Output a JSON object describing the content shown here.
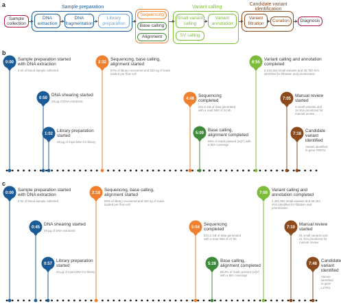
{
  "panel_a": {
    "letter": "a",
    "groups": {
      "sample_prep": "Sample preparation",
      "variant_calling": "Variant calling",
      "candidate": "Candidate variant identification"
    },
    "boxes": {
      "sample_collection": "Sample collection",
      "dna_extraction": "DNA extraction",
      "dna_fragmentation": "DNA fragmentation",
      "library_preparation": "Library preparation",
      "sequencing": "Sequencing",
      "base_calling": "Base calling",
      "alignment": "Alignment",
      "small_variant_calling": "Small variant calling",
      "variant_annotation": "Variant annotation",
      "sv_calling": "SV calling",
      "variant_filtration": "Variant filtration",
      "curation": "Curation",
      "diagnosis": "Diagnosis"
    },
    "colors": {
      "red": "#b0173d",
      "blue": "#1a5a96",
      "lightblue": "#6aa6d8",
      "orange": "#f07f2e",
      "darkgreen": "#3e8a3a",
      "green": "#7dbb3b",
      "brown": "#8b4a1c"
    }
  },
  "panel_b": {
    "letter": "b",
    "events": [
      {
        "time": "0:00",
        "title": "Sample preparation started with DNA extraction",
        "desc": "2 ml of blood sample collected",
        "color": "#1a5a96"
      },
      {
        "time": "0:50",
        "title": "DNA shearing started",
        "desc": "29 µg of DNA extracted",
        "color": "#1a5a96"
      },
      {
        "time": "1:02",
        "title": "Library preparation started",
        "desc": "28 µg of input DNA for library",
        "color": "#1a5a96"
      },
      {
        "time": "2:32",
        "title": "Sequencing, base calling, alignment started",
        "desc": "57% of library recovered and 333 ng of mass loaded per flow cell",
        "color": "#f07f2e"
      },
      {
        "time": "4:48",
        "title": "Sequencing completed",
        "desc": "201.5 GB of data generated with a read N50 of 24 kb",
        "color": "#f07f2e"
      },
      {
        "time": "5:09",
        "title": "Base calling, alignment completed",
        "desc": "89% of reads passed (≥Q7) with a 85× coverage",
        "color": "#3e8a3a"
      },
      {
        "time": "6:55",
        "title": "Variant calling and annotation completed",
        "desc": "4,318,464 small variants and 35,780 SVs identified for filtration and prioritization",
        "color": "#7dbb3b"
      },
      {
        "time": "7:05",
        "title": "Manual review started",
        "desc": "3 small variants and 16 SVs prioritized for manual review",
        "color": "#8b4a1c"
      },
      {
        "time": "7:18",
        "title": "Candidate variant identified",
        "desc": "Variant identified in gene TNNT2",
        "color": "#8b4a1c"
      }
    ]
  },
  "panel_c": {
    "letter": "c",
    "events": [
      {
        "time": "0:00",
        "title": "Sample preparation started with DNA extraction",
        "desc": "2 ml of blood sample collected",
        "color": "#1a5a96"
      },
      {
        "time": "0:45",
        "title": "DNA shearing started",
        "desc": "49 µg of DNA extracted",
        "color": "#1a5a96"
      },
      {
        "time": "0:57",
        "title": "Library preparation started",
        "desc": "32 µg of input DNA for library",
        "color": "#1a5a96"
      },
      {
        "time": "2:18",
        "title": "Sequencing, base calling, alignment started",
        "desc": "50% of library recovered and 333 ng of mass loaded per flow cell",
        "color": "#f07f2e"
      },
      {
        "time": "5:04",
        "title": "Sequencing completed",
        "desc": "201.3 GB of data generated with a read N50 of 27 kb",
        "color": "#f07f2e"
      },
      {
        "time": "5:28",
        "title": "Base calling, alignment completed",
        "desc": "88.3% of reads passed (≥Q7) with a 88× coverage",
        "color": "#3e8a3a"
      },
      {
        "time": "7:00",
        "title": "Variant calling and annotation completed",
        "desc": "4,481,852 small variants and 36,424 SVs identified for filtration and prioritization",
        "color": "#7dbb3b"
      },
      {
        "time": "7:10",
        "title": "Manual review started",
        "desc": "31 small variants and 21 SVs prioritized for manual review",
        "color": "#8b4a1c"
      },
      {
        "time": "7:48",
        "title": "Candidate variant identified",
        "desc": "Variant identified in gene LZTR1",
        "color": "#8b4a1c"
      }
    ]
  }
}
